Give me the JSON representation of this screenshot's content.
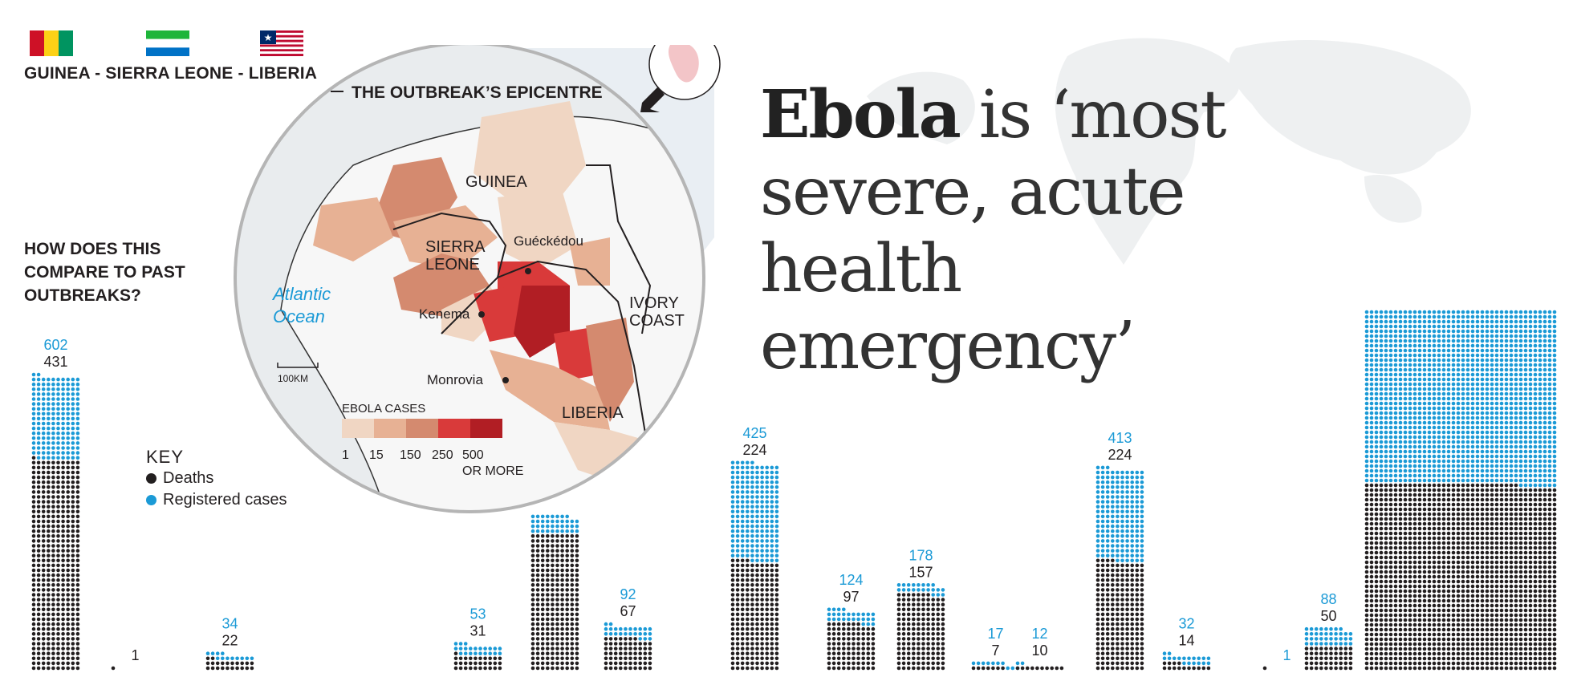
{
  "header": {
    "countries": "GUINEA - SIERRA LEONE - LIBERIA",
    "flags": [
      {
        "name": "guinea",
        "stripes": [
          "#ce1126",
          "#fcd116",
          "#009460"
        ]
      },
      {
        "name": "sierra-leone",
        "stripes": [
          "#1eb53a",
          "#ffffff",
          "#0072c6"
        ]
      },
      {
        "name": "liberia",
        "stripes": [
          "#bf0a30",
          "#ffffff",
          "#002868"
        ]
      }
    ]
  },
  "headline": {
    "bold": "Ebola",
    "rest": " is ‘most severe, acute health emergency’"
  },
  "comparison": {
    "question": "HOW DOES THIS COMPARE TO PAST OUTBREAKS?"
  },
  "key": {
    "title": "KEY",
    "deaths_label": "Deaths",
    "cases_label": "Registered cases"
  },
  "inset_map": {
    "epicentre": "THE OUTBREAK’S EPICENTRE",
    "countries": [
      "GUINEA",
      "SIERRA LEONE",
      "LIBERIA",
      "IVORY COAST"
    ],
    "ocean": "Atlantic Ocean",
    "places": [
      "Guéckédou",
      "Kenema",
      "Monrovia"
    ],
    "scale": "100KM",
    "legend_title": "EBOLA CASES",
    "legend_ticks": [
      "1",
      "15",
      "150",
      "250",
      "500",
      "OR MORE"
    ],
    "legend_colors": [
      "#f0d6c3",
      "#e7b194",
      "#d48a6f",
      "#d93a3a",
      "#b11e24"
    ]
  },
  "colors": {
    "deaths": "#231f20",
    "cases": "#1b9ad6"
  },
  "chart_data": {
    "type": "bar",
    "title": "HOW DOES THIS COMPARE TO PAST OUTBREAKS?",
    "encoding": "dot-matrix (one dot = one person); black = deaths, blue = registered cases",
    "series": [
      {
        "name": "Registered cases",
        "values": [
          602,
          1,
          34,
          53,
          318,
          92,
          425,
          124,
          178,
          17,
          12,
          413,
          32,
          1,
          88,
          3000
        ]
      },
      {
        "name": "Deaths",
        "values": [
          431,
          1,
          22,
          31,
          280,
          67,
          224,
          97,
          157,
          7,
          10,
          224,
          14,
          1,
          50,
          1552
        ]
      }
    ],
    "labels": [
      {
        "cases": "602",
        "deaths": "431"
      },
      {
        "cases": "",
        "deaths": "1"
      },
      {
        "cases": "34",
        "deaths": "22"
      },
      {
        "cases": "53",
        "deaths": "31"
      },
      {
        "cases": "",
        "deaths": ""
      },
      {
        "cases": "92",
        "deaths": "67"
      },
      {
        "cases": "425",
        "deaths": "224"
      },
      {
        "cases": "124",
        "deaths": "97"
      },
      {
        "cases": "178",
        "deaths": "157"
      },
      {
        "cases": "17",
        "deaths": "7"
      },
      {
        "cases": "12",
        "deaths": "10"
      },
      {
        "cases": "413",
        "deaths": "224"
      },
      {
        "cases": "32",
        "deaths": "14"
      },
      {
        "cases": "1",
        "deaths": ""
      },
      {
        "cases": "88",
        "deaths": "50"
      },
      {
        "cases": "",
        "deaths": ""
      }
    ]
  }
}
